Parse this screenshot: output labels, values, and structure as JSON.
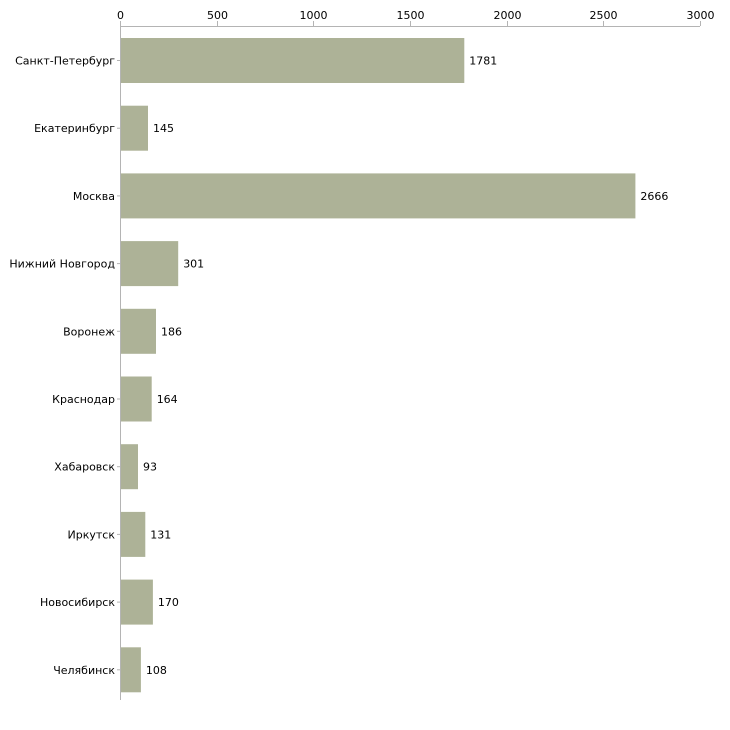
{
  "chart_data": {
    "type": "bar",
    "orientation": "horizontal",
    "title": "",
    "xlabel": "",
    "ylabel": "",
    "xlim": [
      0,
      3000
    ],
    "ticks": [
      0,
      500,
      1000,
      1500,
      2000,
      2500,
      3000
    ],
    "tick_labels": [
      "0",
      "500",
      "1000",
      "1500",
      "2000",
      "2500",
      "3000"
    ],
    "categories": [
      "Санкт-Петербург",
      "Екатеринбург",
      "Москва",
      "Нижний Новгород",
      "Воронеж",
      "Краснодар",
      "Хабаровск",
      "Иркутск",
      "Новосибирск",
      "Челябинск"
    ],
    "values": [
      1781,
      145,
      2666,
      301,
      186,
      164,
      93,
      131,
      170,
      108
    ],
    "value_labels": [
      "1781",
      "145",
      "2666",
      "301",
      "186",
      "164",
      "93",
      "131",
      "170",
      "108"
    ],
    "grid": false,
    "legend": "none",
    "colors": {
      "bar": "#adb297",
      "axis": "#b4b4b4",
      "text": "#000000"
    }
  }
}
